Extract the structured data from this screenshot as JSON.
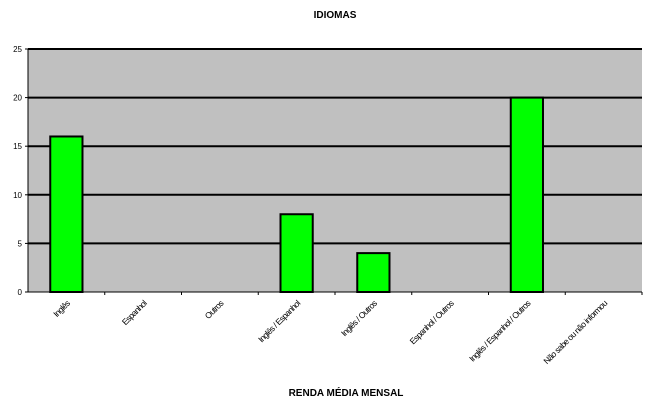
{
  "chart_data": {
    "type": "bar",
    "title": "IDIOMAS",
    "categories": [
      "Inglês",
      "Espanhol",
      "Outros",
      "Inglês / Espanhol",
      "Inglês / Outros",
      "Espanhol / Outros",
      "Inglês / Espanhol / Outros",
      "Não sabe ou não informou"
    ],
    "values": [
      16,
      0,
      0,
      8,
      4,
      0,
      20,
      0
    ],
    "ylim": [
      0,
      25
    ],
    "yticks": [
      0,
      5,
      10,
      15,
      20,
      25
    ],
    "grid": true,
    "legend": "none",
    "colors": {
      "bar": "#00ff00",
      "plot_background": "#c0c0c0",
      "bar_outline": "#000000"
    }
  },
  "footer_text": "RENDA MÉDIA MENSAL"
}
